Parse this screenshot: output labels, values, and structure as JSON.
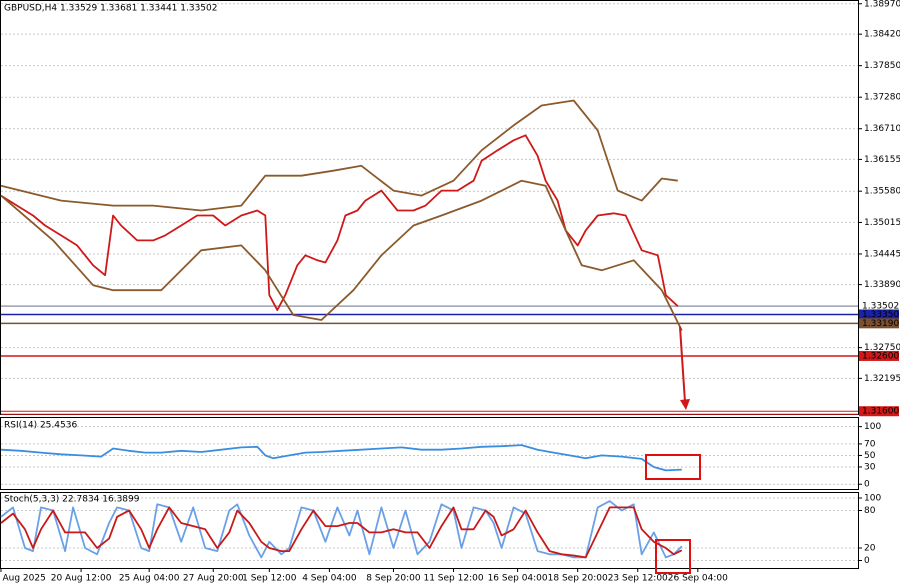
{
  "chart_data": [
    {
      "type": "line",
      "title": "GBPUSD,H4  1.33529 1.33681 1.33441 1.33502",
      "xlim": [
        0,
        214
      ],
      "ylim": [
        1.3155,
        1.3902
      ],
      "yticks": [
        {
          "value": 1.3897,
          "label": "1.38970"
        },
        {
          "value": 1.3842,
          "label": "1.38420"
        },
        {
          "value": 1.3785,
          "label": "1.37850"
        },
        {
          "value": 1.3728,
          "label": "1.37280"
        },
        {
          "value": 1.3671,
          "label": "1.36710"
        },
        {
          "value": 1.36155,
          "label": "1.36155"
        },
        {
          "value": 1.3558,
          "label": "1.35580"
        },
        {
          "value": 1.35015,
          "label": "1.35015"
        },
        {
          "value": 1.34445,
          "label": "1.34445"
        },
        {
          "value": 1.3389,
          "label": "1.33890"
        },
        {
          "value": 1.3275,
          "label": "1.32750"
        },
        {
          "value": 1.32195,
          "label": "1.32195"
        }
      ],
      "grid": true,
      "levels": [
        {
          "value": 1.33502,
          "label": "1.33502",
          "color": "#9aa0b0"
        },
        {
          "value": 1.3335,
          "label": "1.33350",
          "color": "#1a22a8"
        },
        {
          "value": 1.3319,
          "label": "1.33190",
          "color": "#7a5030"
        },
        {
          "value": 1.326,
          "label": "1.32600",
          "color": "#d01818"
        },
        {
          "value": 1.316,
          "label": "1.31600",
          "color": "#d01818"
        }
      ],
      "series": [
        {
          "color": "#d01818",
          "x": [
            0,
            4,
            8,
            11,
            15,
            19,
            23,
            26,
            28,
            30,
            34,
            38,
            41,
            45,
            49,
            53,
            56,
            60,
            64,
            66,
            67,
            69,
            71,
            74,
            76,
            79,
            81,
            84,
            86,
            89,
            91,
            95,
            99,
            103,
            106,
            110,
            114,
            118,
            120,
            124,
            128,
            131,
            134,
            136,
            139,
            141,
            144,
            146,
            149,
            153,
            156,
            160,
            164,
            166,
            169
          ],
          "values": [
            1.355,
            1.3532,
            1.3514,
            1.3496,
            1.3478,
            1.346,
            1.3424,
            1.3406,
            1.3514,
            1.3496,
            1.3469,
            1.3469,
            1.3478,
            1.3496,
            1.3514,
            1.3514,
            1.3496,
            1.3514,
            1.3523,
            1.3514,
            1.337,
            1.3343,
            1.337,
            1.3424,
            1.3442,
            1.3433,
            1.3429,
            1.3469,
            1.3514,
            1.3523,
            1.3541,
            1.3559,
            1.3523,
            1.3523,
            1.3532,
            1.3559,
            1.3559,
            1.3577,
            1.3613,
            1.3632,
            1.365,
            1.3659,
            1.3622,
            1.3577,
            1.3541,
            1.3487,
            1.346,
            1.3487,
            1.3514,
            1.3518,
            1.3514,
            1.3451,
            1.3442,
            1.337,
            1.335
          ]
        },
        {
          "color": "#8b5a2b",
          "x": [
            0,
            15,
            28,
            38,
            50,
            60,
            66,
            75,
            83,
            90,
            98,
            105,
            113,
            120,
            128,
            135,
            143,
            149,
            154,
            160,
            165,
            169
          ],
          "values": [
            1.3568,
            1.3541,
            1.3532,
            1.3532,
            1.3523,
            1.3532,
            1.3586,
            1.3586,
            1.3595,
            1.3604,
            1.3559,
            1.355,
            1.3577,
            1.3632,
            1.3677,
            1.3713,
            1.3722,
            1.3668,
            1.3559,
            1.3541,
            1.3581,
            1.3577
          ]
        },
        {
          "color": "#8b5a2b",
          "x": [
            0,
            13,
            23,
            28,
            40,
            50,
            60,
            66,
            73,
            80,
            88,
            95,
            103,
            110,
            120,
            130,
            136,
            141,
            145,
            150,
            158,
            165,
            170
          ],
          "values": [
            1.355,
            1.3469,
            1.3388,
            1.3379,
            1.3379,
            1.3451,
            1.346,
            1.3415,
            1.3334,
            1.3325,
            1.3379,
            1.3442,
            1.3496,
            1.3514,
            1.3541,
            1.3577,
            1.3568,
            1.3487,
            1.3424,
            1.3415,
            1.3433,
            1.3379,
            1.3306
          ]
        }
      ]
    },
    {
      "type": "line",
      "title": "RSI(14) 25.4536",
      "xlim": [
        0,
        214
      ],
      "ylim": [
        -10,
        115
      ],
      "yticks": [
        0,
        30,
        50,
        70,
        100
      ],
      "grid": true,
      "series": [
        {
          "color": "#3a8ee0",
          "x": [
            0,
            5,
            10,
            15,
            20,
            25,
            28,
            32,
            36,
            40,
            45,
            50,
            55,
            60,
            64,
            66,
            68,
            72,
            76,
            80,
            85,
            90,
            95,
            100,
            105,
            110,
            115,
            120,
            125,
            130,
            134,
            138,
            142,
            146,
            150,
            155,
            160,
            163,
            166,
            170
          ],
          "values": [
            60,
            58,
            55,
            52,
            50,
            48,
            62,
            58,
            55,
            55,
            58,
            56,
            60,
            64,
            65,
            50,
            45,
            50,
            55,
            56,
            58,
            60,
            62,
            64,
            60,
            60,
            62,
            65,
            66,
            68,
            60,
            55,
            50,
            45,
            50,
            48,
            44,
            30,
            24,
            25.45
          ]
        }
      ]
    },
    {
      "type": "line",
      "title": "Stoch(5,3,3) 22.7834 16.3899",
      "xlim": [
        0,
        214
      ],
      "ylim": [
        -12,
        108
      ],
      "yticks": [
        0,
        20,
        80,
        100
      ],
      "grid": true,
      "xticks": [
        {
          "value": 0,
          "label": "15 Aug 2025"
        },
        {
          "value": 20,
          "label": "20 Aug 12:00"
        },
        {
          "value": 37,
          "label": "25 Aug 04:00"
        },
        {
          "value": 53,
          "label": "27 Aug 20:00"
        },
        {
          "value": 67,
          "label": "1 Sep 12:00"
        },
        {
          "value": 82,
          "label": "4 Sep 04:00"
        },
        {
          "value": 98,
          "label": "8 Sep 20:00"
        },
        {
          "value": 113,
          "label": "11 Sep 12:00"
        },
        {
          "value": 129,
          "label": "16 Sep 04:00"
        },
        {
          "value": 144,
          "label": "18 Sep 20:00"
        },
        {
          "value": 159,
          "label": "23 Sep 12:00"
        },
        {
          "value": 174,
          "label": "26 Sep 04:00"
        }
      ],
      "series": [
        {
          "color": "#6aa0e8",
          "x": [
            0,
            3,
            6,
            8,
            10,
            13,
            16,
            18,
            21,
            24,
            27,
            29,
            32,
            35,
            37,
            39,
            42,
            45,
            48,
            51,
            54,
            57,
            59,
            62,
            65,
            67,
            70,
            72,
            75,
            78,
            81,
            84,
            87,
            89,
            92,
            95,
            98,
            101,
            104,
            107,
            110,
            113,
            115,
            118,
            121,
            123,
            125,
            128,
            131,
            134,
            137,
            140,
            143,
            146,
            149,
            152,
            155,
            158,
            160,
            163,
            166,
            168,
            170
          ],
          "values": [
            70,
            85,
            20,
            15,
            85,
            80,
            15,
            85,
            20,
            10,
            60,
            85,
            80,
            20,
            15,
            90,
            85,
            30,
            85,
            20,
            15,
            80,
            90,
            40,
            5,
            30,
            10,
            20,
            85,
            80,
            30,
            85,
            40,
            80,
            10,
            85,
            20,
            80,
            10,
            30,
            90,
            80,
            20,
            85,
            80,
            60,
            20,
            85,
            75,
            15,
            10,
            10,
            5,
            5,
            85,
            95,
            80,
            90,
            10,
            45,
            5,
            10,
            22.78
          ]
        },
        {
          "color": "#c81818",
          "x": [
            0,
            3,
            6,
            8,
            10,
            13,
            16,
            18,
            21,
            24,
            27,
            29,
            32,
            35,
            37,
            39,
            42,
            45,
            48,
            51,
            54,
            57,
            59,
            62,
            65,
            67,
            70,
            72,
            75,
            78,
            81,
            84,
            87,
            89,
            92,
            95,
            98,
            101,
            104,
            107,
            110,
            113,
            115,
            118,
            121,
            123,
            125,
            128,
            131,
            134,
            137,
            140,
            143,
            146,
            149,
            152,
            155,
            158,
            160,
            163,
            166,
            168,
            170
          ],
          "values": [
            60,
            75,
            50,
            20,
            50,
            80,
            45,
            45,
            45,
            20,
            35,
            70,
            80,
            50,
            20,
            50,
            85,
            60,
            55,
            50,
            20,
            45,
            80,
            60,
            30,
            20,
            15,
            15,
            50,
            80,
            55,
            55,
            60,
            60,
            45,
            45,
            50,
            45,
            45,
            20,
            55,
            85,
            50,
            50,
            80,
            70,
            40,
            50,
            80,
            45,
            15,
            10,
            8,
            5,
            45,
            85,
            85,
            85,
            50,
            30,
            20,
            10,
            16.39
          ]
        }
      ]
    }
  ]
}
